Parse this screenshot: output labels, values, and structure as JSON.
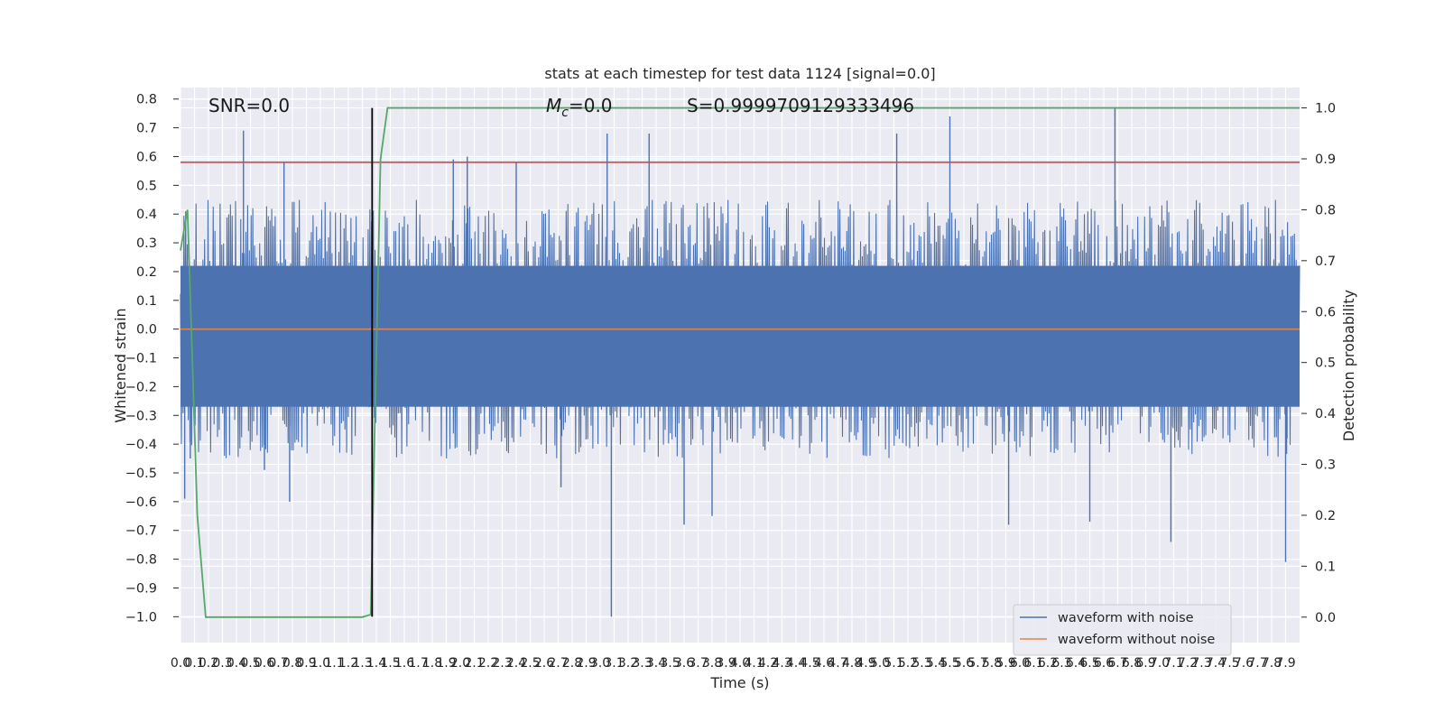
{
  "chart_data": {
    "type": "line",
    "title": "stats at each timestep for test data 1124 [signal=0.0]",
    "xlabel": "Time (s)",
    "ylabel_left": "Whitened strain",
    "ylabel_right": "Detection probability",
    "xlim": [
      0.0,
      8.0
    ],
    "ylim_left": [
      -1.09,
      0.84
    ],
    "ylim_right": [
      -0.05,
      1.04
    ],
    "x_ticks": [
      0.0,
      0.1,
      0.2,
      0.3,
      0.4,
      0.5,
      0.6,
      0.7,
      0.8,
      0.9,
      1.0,
      1.1,
      1.2,
      1.3,
      1.4,
      1.5,
      1.6,
      1.7,
      1.8,
      1.9,
      2.0,
      2.1,
      2.2,
      2.3,
      2.4,
      2.5,
      2.6,
      2.7,
      2.8,
      2.9,
      3.0,
      3.1,
      3.2,
      3.3,
      3.4,
      3.5,
      3.6,
      3.7,
      3.8,
      3.9,
      4.0,
      4.1,
      4.2,
      4.3,
      4.4,
      4.5,
      4.6,
      4.7,
      4.8,
      4.9,
      5.0,
      5.1,
      5.2,
      5.3,
      5.4,
      5.5,
      5.6,
      5.7,
      5.8,
      5.9,
      6.0,
      6.1,
      6.2,
      6.3,
      6.4,
      6.5,
      6.6,
      6.7,
      6.8,
      6.9,
      7.0,
      7.1,
      7.2,
      7.3,
      7.4,
      7.5,
      7.6,
      7.7,
      7.8,
      7.9
    ],
    "x_tick_labels": [
      "0.0",
      "0.1",
      "0.2",
      "0.3",
      "0.4",
      "0.5",
      "0.6",
      "0.7",
      "0.8",
      "0.9",
      "1.0",
      "1.1",
      "1.2",
      "1.3",
      "1.4",
      "1.5",
      "1.6",
      "1.7",
      "1.8",
      "1.9",
      "2.0",
      "2.1",
      "2.2",
      "2.3",
      "2.4",
      "2.5",
      "2.6",
      "2.7",
      "2.8",
      "2.9",
      "3.0",
      "3.1",
      "3.2",
      "3.3",
      "3.4",
      "3.5",
      "3.6",
      "3.7",
      "3.8",
      "3.9",
      "4.0",
      "4.1",
      "4.2",
      "4.3",
      "4.4",
      "4.5",
      "4.6",
      "4.7",
      "4.8",
      "4.9",
      "5.0",
      "5.1",
      "5.2",
      "5.3",
      "5.4",
      "5.5",
      "5.6",
      "5.7",
      "5.8",
      "5.9",
      "6.0",
      "6.1",
      "6.2",
      "6.3",
      "6.4",
      "6.5",
      "6.6",
      "6.7",
      "6.8",
      "6.9",
      "7.0",
      "7.1",
      "7.2",
      "7.3",
      "7.4",
      "7.5",
      "7.6",
      "7.7",
      "7.8",
      "7.9"
    ],
    "y_left_ticks": [
      0.8,
      0.7,
      0.6,
      0.5,
      0.4,
      0.3,
      0.2,
      0.1,
      0.0,
      -0.1,
      -0.2,
      -0.3,
      -0.4,
      -0.5,
      -0.6,
      -0.7,
      -0.8,
      -0.9,
      -1.0
    ],
    "y_left_tick_labels": [
      "0.8",
      "0.7",
      "0.6",
      "0.5",
      "0.4",
      "0.3",
      "0.2",
      "0.1",
      "0.0",
      "−0.1",
      "−0.2",
      "−0.3",
      "−0.4",
      "−0.5",
      "−0.6",
      "−0.7",
      "−0.8",
      "−0.9",
      "−1.0"
    ],
    "y_right_ticks": [
      1.0,
      0.9,
      0.8,
      0.7,
      0.6,
      0.5,
      0.4,
      0.3,
      0.2,
      0.1,
      0.0
    ],
    "y_right_tick_labels": [
      "1.0",
      "0.9",
      "0.8",
      "0.7",
      "0.6",
      "0.5",
      "0.4",
      "0.3",
      "0.2",
      "0.1",
      "0.0"
    ],
    "grid": true,
    "legend_position": "lower-right",
    "annotations": {
      "snr_text": "SNR=0.0",
      "mc_symbol": "M",
      "mc_subscript": "c",
      "mc_value": "=0.0",
      "s_text": "S=0.9999709129333496"
    },
    "series": [
      {
        "name": "waveform with noise",
        "axis": "left",
        "color": "#4c72b0",
        "kind": "noise",
        "envelope_pos": 0.45,
        "envelope_neg": -0.45,
        "x": [
          0.03,
          0.07,
          0.45,
          0.6,
          0.74,
          0.78,
          1.95,
          2.05,
          2.4,
          2.72,
          3.05,
          3.08,
          3.35,
          3.6,
          3.8,
          5.12,
          5.5,
          5.92,
          6.5,
          6.68,
          7.08,
          7.9,
          7.91
        ],
        "y": [
          -0.59,
          -0.45,
          0.69,
          -0.49,
          0.58,
          -0.6,
          0.59,
          0.6,
          0.58,
          -0.55,
          0.68,
          -1.0,
          0.68,
          -0.68,
          -0.65,
          0.68,
          0.74,
          -0.68,
          -0.67,
          0.77,
          -0.74,
          -0.81,
          -0.38
        ]
      },
      {
        "name": "waveform without noise",
        "axis": "left",
        "color": "#dd8452",
        "x": [
          0.0,
          8.0
        ],
        "y": [
          0.0,
          0.0
        ]
      },
      {
        "name": "",
        "axis": "right",
        "color": "#55a868",
        "x": [
          0.0,
          0.05,
          0.12,
          0.18,
          0.5,
          1.0,
          1.2,
          1.3,
          1.36,
          1.43,
          1.48,
          8.0
        ],
        "y": [
          0.72,
          0.8,
          0.2,
          0.0,
          0.0,
          0.0,
          0.0,
          0.0,
          0.005,
          0.9,
          1.0,
          1.0
        ]
      }
    ],
    "threshold_line": {
      "axis": "left",
      "y": 0.58,
      "color": "#c44e52"
    },
    "vertical_marker": {
      "x": 1.37,
      "y_top_right_axis": 1.0,
      "y_bottom_left_axis": -1.0,
      "color": "#000000"
    },
    "legend": [
      {
        "label": "waveform with noise",
        "color": "#4c72b0"
      },
      {
        "label": "waveform without noise",
        "color": "#dd8452"
      }
    ]
  }
}
